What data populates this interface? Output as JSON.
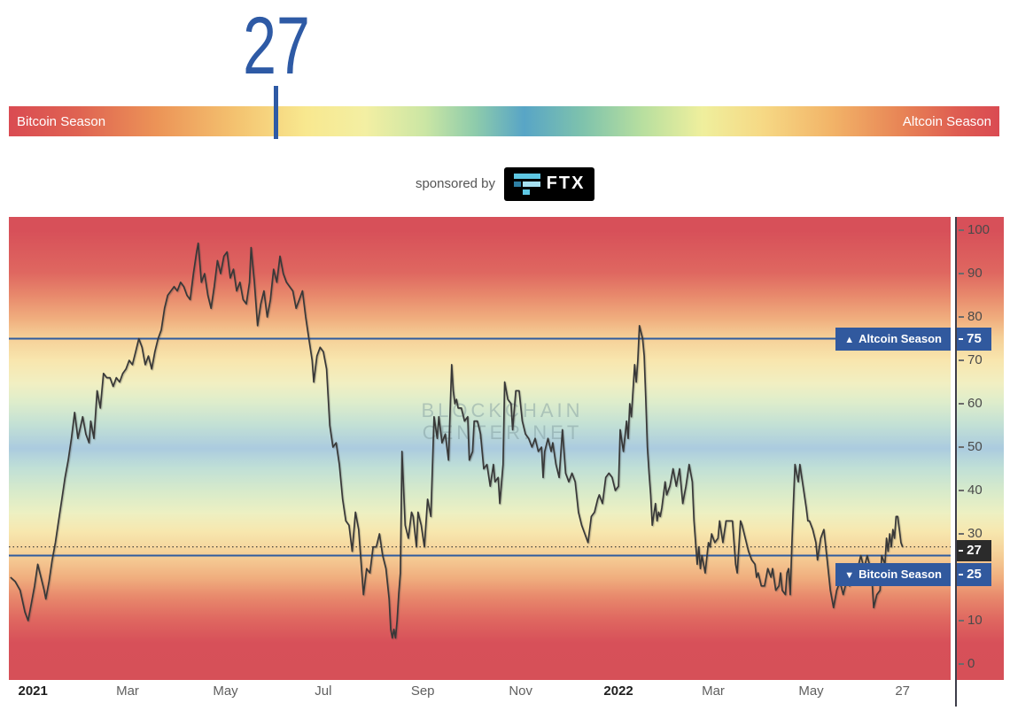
{
  "header": {
    "current_value": "27"
  },
  "gauge": {
    "value": 27,
    "left_label": "Bitcoin Season",
    "right_label": "Altcoin Season"
  },
  "sponsor": {
    "prefix": "sponsored by",
    "name": "FTX"
  },
  "watermark": {
    "line1": "BLOCKCHAIN",
    "line2": "CENTER.NET"
  },
  "colors": {
    "accent_blue": "#31599E",
    "number_blue": "#2E5AA5",
    "current_chip_dark": "#2B2B2B",
    "series_line": "#383838",
    "axis": "#3D3D49"
  },
  "chart_data": {
    "type": "line",
    "title": "Altcoin Season Index",
    "x_axis": {
      "domain": [
        "2020-12-17",
        "2022-07-27"
      ],
      "ticks": [
        {
          "label": "2021",
          "date": "2021-01-01",
          "emphasis": true
        },
        {
          "label": "Mar",
          "date": "2021-03-01"
        },
        {
          "label": "May",
          "date": "2021-05-01"
        },
        {
          "label": "Jul",
          "date": "2021-07-01"
        },
        {
          "label": "Sep",
          "date": "2021-09-01"
        },
        {
          "label": "Nov",
          "date": "2021-11-01"
        },
        {
          "label": "2022",
          "date": "2022-01-01",
          "emphasis": true
        },
        {
          "label": "Mar",
          "date": "2022-03-01"
        },
        {
          "label": "May",
          "date": "2022-05-01"
        },
        {
          "label": "27",
          "date": "2022-06-27"
        }
      ]
    },
    "y_axis": {
      "range": [
        0,
        100
      ],
      "ticks": [
        0,
        10,
        20,
        30,
        40,
        50,
        60,
        70,
        80,
        90,
        100
      ]
    },
    "thresholds": {
      "altcoin": {
        "value": 75,
        "icon": "▲",
        "label": "Altcoin Season"
      },
      "bitcoin": {
        "value": 25,
        "icon": "▼",
        "label": "Bitcoin Season"
      }
    },
    "current": {
      "value": 27,
      "date": "2022-06-27"
    },
    "series": [
      [
        "2020-12-18",
        20
      ],
      [
        "2020-12-21",
        19
      ],
      [
        "2020-12-24",
        17
      ],
      [
        "2020-12-27",
        12
      ],
      [
        "2020-12-29",
        10
      ],
      [
        "2020-12-31",
        14
      ],
      [
        "2021-01-02",
        18
      ],
      [
        "2021-01-04",
        23
      ],
      [
        "2021-01-06",
        20
      ],
      [
        "2021-01-08",
        17
      ],
      [
        "2021-01-09",
        15
      ],
      [
        "2021-01-11",
        19
      ],
      [
        "2021-01-13",
        24
      ],
      [
        "2021-01-15",
        28
      ],
      [
        "2021-01-17",
        33
      ],
      [
        "2021-01-19",
        38
      ],
      [
        "2021-01-21",
        43
      ],
      [
        "2021-01-23",
        47
      ],
      [
        "2021-01-25",
        52
      ],
      [
        "2021-01-27",
        58
      ],
      [
        "2021-01-29",
        52
      ],
      [
        "2021-02-01",
        57
      ],
      [
        "2021-02-03",
        53
      ],
      [
        "2021-02-05",
        51
      ],
      [
        "2021-02-06",
        56
      ],
      [
        "2021-02-08",
        52
      ],
      [
        "2021-02-10",
        63
      ],
      [
        "2021-02-12",
        59
      ],
      [
        "2021-02-14",
        67
      ],
      [
        "2021-02-16",
        66
      ],
      [
        "2021-02-18",
        66
      ],
      [
        "2021-02-20",
        64
      ],
      [
        "2021-02-22",
        66
      ],
      [
        "2021-02-24",
        65
      ],
      [
        "2021-02-26",
        67
      ],
      [
        "2021-02-28",
        68
      ],
      [
        "2021-03-02",
        70
      ],
      [
        "2021-03-04",
        69
      ],
      [
        "2021-03-06",
        72
      ],
      [
        "2021-03-08",
        75
      ],
      [
        "2021-03-10",
        73
      ],
      [
        "2021-03-12",
        69
      ],
      [
        "2021-03-14",
        71
      ],
      [
        "2021-03-16",
        68
      ],
      [
        "2021-03-18",
        72
      ],
      [
        "2021-03-20",
        75
      ],
      [
        "2021-03-22",
        77
      ],
      [
        "2021-03-24",
        82
      ],
      [
        "2021-03-26",
        85
      ],
      [
        "2021-03-28",
        86
      ],
      [
        "2021-03-30",
        87
      ],
      [
        "2021-04-01",
        86
      ],
      [
        "2021-04-03",
        88
      ],
      [
        "2021-04-05",
        87
      ],
      [
        "2021-04-07",
        85
      ],
      [
        "2021-04-09",
        84
      ],
      [
        "2021-04-11",
        90
      ],
      [
        "2021-04-13",
        95
      ],
      [
        "2021-04-14",
        97
      ],
      [
        "2021-04-16",
        88
      ],
      [
        "2021-04-18",
        90
      ],
      [
        "2021-04-20",
        85
      ],
      [
        "2021-04-22",
        82
      ],
      [
        "2021-04-24",
        87
      ],
      [
        "2021-04-26",
        93
      ],
      [
        "2021-04-28",
        90
      ],
      [
        "2021-04-30",
        94
      ],
      [
        "2021-05-02",
        95
      ],
      [
        "2021-05-04",
        89
      ],
      [
        "2021-05-06",
        91
      ],
      [
        "2021-05-08",
        86
      ],
      [
        "2021-05-10",
        88
      ],
      [
        "2021-05-12",
        84
      ],
      [
        "2021-05-14",
        83
      ],
      [
        "2021-05-16",
        88
      ],
      [
        "2021-05-17",
        96
      ],
      [
        "2021-05-19",
        88
      ],
      [
        "2021-05-21",
        78
      ],
      [
        "2021-05-23",
        83
      ],
      [
        "2021-05-25",
        86
      ],
      [
        "2021-05-27",
        80
      ],
      [
        "2021-05-29",
        84
      ],
      [
        "2021-05-31",
        91
      ],
      [
        "2021-06-02",
        88
      ],
      [
        "2021-06-04",
        94
      ],
      [
        "2021-06-06",
        90
      ],
      [
        "2021-06-08",
        88
      ],
      [
        "2021-06-10",
        87
      ],
      [
        "2021-06-12",
        86
      ],
      [
        "2021-06-14",
        82
      ],
      [
        "2021-06-16",
        84
      ],
      [
        "2021-06-18",
        86
      ],
      [
        "2021-06-20",
        80
      ],
      [
        "2021-06-22",
        75
      ],
      [
        "2021-06-24",
        70
      ],
      [
        "2021-06-25",
        65
      ],
      [
        "2021-06-27",
        71
      ],
      [
        "2021-06-29",
        73
      ],
      [
        "2021-07-01",
        72
      ],
      [
        "2021-07-03",
        68
      ],
      [
        "2021-07-05",
        55
      ],
      [
        "2021-07-07",
        50
      ],
      [
        "2021-07-09",
        51
      ],
      [
        "2021-07-11",
        46
      ],
      [
        "2021-07-13",
        38
      ],
      [
        "2021-07-15",
        33
      ],
      [
        "2021-07-17",
        32
      ],
      [
        "2021-07-19",
        26
      ],
      [
        "2021-07-21",
        35
      ],
      [
        "2021-07-23",
        31
      ],
      [
        "2021-07-24",
        26
      ],
      [
        "2021-07-26",
        16
      ],
      [
        "2021-07-28",
        22
      ],
      [
        "2021-07-30",
        21
      ],
      [
        "2021-08-01",
        27
      ],
      [
        "2021-08-03",
        27
      ],
      [
        "2021-08-05",
        30
      ],
      [
        "2021-08-07",
        25
      ],
      [
        "2021-08-09",
        22
      ],
      [
        "2021-08-11",
        15
      ],
      [
        "2021-08-12",
        8
      ],
      [
        "2021-08-13",
        6
      ],
      [
        "2021-08-14",
        8
      ],
      [
        "2021-08-15",
        6
      ],
      [
        "2021-08-16",
        10
      ],
      [
        "2021-08-17",
        16
      ],
      [
        "2021-08-18",
        21
      ],
      [
        "2021-08-19",
        49
      ],
      [
        "2021-08-21",
        32
      ],
      [
        "2021-08-23",
        29
      ],
      [
        "2021-08-25",
        35
      ],
      [
        "2021-08-26",
        34
      ],
      [
        "2021-08-28",
        27
      ],
      [
        "2021-08-29",
        35
      ],
      [
        "2021-08-31",
        32
      ],
      [
        "2021-09-02",
        27
      ],
      [
        "2021-09-04",
        38
      ],
      [
        "2021-09-05",
        36
      ],
      [
        "2021-09-06",
        34
      ],
      [
        "2021-09-08",
        57
      ],
      [
        "2021-09-10",
        52
      ],
      [
        "2021-09-11",
        57
      ],
      [
        "2021-09-13",
        51
      ],
      [
        "2021-09-15",
        53
      ],
      [
        "2021-09-17",
        47
      ],
      [
        "2021-09-19",
        69
      ],
      [
        "2021-09-20",
        63
      ],
      [
        "2021-09-21",
        60
      ],
      [
        "2021-09-22",
        61
      ],
      [
        "2021-09-23",
        59
      ],
      [
        "2021-09-25",
        59
      ],
      [
        "2021-09-27",
        56
      ],
      [
        "2021-09-29",
        57
      ],
      [
        "2021-09-30",
        47
      ],
      [
        "2021-10-02",
        49
      ],
      [
        "2021-10-03",
        56
      ],
      [
        "2021-10-05",
        56
      ],
      [
        "2021-10-07",
        53
      ],
      [
        "2021-10-09",
        45
      ],
      [
        "2021-10-11",
        46
      ],
      [
        "2021-10-13",
        41
      ],
      [
        "2021-10-15",
        46
      ],
      [
        "2021-10-16",
        42
      ],
      [
        "2021-10-18",
        43
      ],
      [
        "2021-10-19",
        37
      ],
      [
        "2021-10-21",
        46
      ],
      [
        "2021-10-22",
        65
      ],
      [
        "2021-10-24",
        61
      ],
      [
        "2021-10-26",
        60
      ],
      [
        "2021-10-27",
        54
      ],
      [
        "2021-10-29",
        63
      ],
      [
        "2021-10-31",
        63
      ],
      [
        "2021-11-02",
        56
      ],
      [
        "2021-11-04",
        53
      ],
      [
        "2021-11-06",
        52
      ],
      [
        "2021-11-08",
        50
      ],
      [
        "2021-11-10",
        52
      ],
      [
        "2021-11-12",
        49
      ],
      [
        "2021-11-14",
        50
      ],
      [
        "2021-11-15",
        43
      ],
      [
        "2021-11-16",
        49
      ],
      [
        "2021-11-18",
        52
      ],
      [
        "2021-11-20",
        49
      ],
      [
        "2021-11-21",
        51
      ],
      [
        "2021-11-23",
        46
      ],
      [
        "2021-11-25",
        43
      ],
      [
        "2021-11-27",
        54
      ],
      [
        "2021-11-29",
        44
      ],
      [
        "2021-12-01",
        42
      ],
      [
        "2021-12-03",
        44
      ],
      [
        "2021-12-05",
        42
      ],
      [
        "2021-12-07",
        35
      ],
      [
        "2021-12-09",
        32
      ],
      [
        "2021-12-11",
        30
      ],
      [
        "2021-12-13",
        28
      ],
      [
        "2021-12-15",
        34
      ],
      [
        "2021-12-17",
        35
      ],
      [
        "2021-12-19",
        38
      ],
      [
        "2021-12-20",
        39
      ],
      [
        "2021-12-22",
        37
      ],
      [
        "2021-12-24",
        43
      ],
      [
        "2021-12-26",
        44
      ],
      [
        "2021-12-28",
        43
      ],
      [
        "2021-12-30",
        40
      ],
      [
        "2022-01-01",
        41
      ],
      [
        "2022-01-02",
        54
      ],
      [
        "2022-01-04",
        49
      ],
      [
        "2022-01-06",
        56
      ],
      [
        "2022-01-07",
        52
      ],
      [
        "2022-01-08",
        60
      ],
      [
        "2022-01-09",
        57
      ],
      [
        "2022-01-11",
        69
      ],
      [
        "2022-01-12",
        65
      ],
      [
        "2022-01-13",
        70
      ],
      [
        "2022-01-14",
        78
      ],
      [
        "2022-01-16",
        75
      ],
      [
        "2022-01-17",
        71
      ],
      [
        "2022-01-18",
        61
      ],
      [
        "2022-01-19",
        50
      ],
      [
        "2022-01-20",
        44
      ],
      [
        "2022-01-21",
        39
      ],
      [
        "2022-01-22",
        32
      ],
      [
        "2022-01-24",
        37
      ],
      [
        "2022-01-25",
        33
      ],
      [
        "2022-01-26",
        35
      ],
      [
        "2022-01-27",
        34
      ],
      [
        "2022-01-28",
        36
      ],
      [
        "2022-01-30",
        42
      ],
      [
        "2022-01-31",
        39
      ],
      [
        "2022-02-02",
        41
      ],
      [
        "2022-02-04",
        45
      ],
      [
        "2022-02-06",
        41
      ],
      [
        "2022-02-08",
        45
      ],
      [
        "2022-02-10",
        37
      ],
      [
        "2022-02-12",
        41
      ],
      [
        "2022-02-14",
        46
      ],
      [
        "2022-02-16",
        42
      ],
      [
        "2022-02-17",
        33
      ],
      [
        "2022-02-19",
        23
      ],
      [
        "2022-02-20",
        27
      ],
      [
        "2022-02-21",
        22
      ],
      [
        "2022-02-22",
        25
      ],
      [
        "2022-02-24",
        21
      ],
      [
        "2022-02-26",
        28
      ],
      [
        "2022-02-27",
        27
      ],
      [
        "2022-02-28",
        30
      ],
      [
        "2022-03-02",
        28
      ],
      [
        "2022-03-04",
        29
      ],
      [
        "2022-03-05",
        33
      ],
      [
        "2022-03-07",
        28
      ],
      [
        "2022-03-09",
        33
      ],
      [
        "2022-03-11",
        33
      ],
      [
        "2022-03-13",
        33
      ],
      [
        "2022-03-14",
        28
      ],
      [
        "2022-03-15",
        23
      ],
      [
        "2022-03-16",
        21
      ],
      [
        "2022-03-18",
        33
      ],
      [
        "2022-03-19",
        32
      ],
      [
        "2022-03-21",
        29
      ],
      [
        "2022-03-23",
        26
      ],
      [
        "2022-03-25",
        24
      ],
      [
        "2022-03-27",
        23
      ],
      [
        "2022-03-28",
        20
      ],
      [
        "2022-03-29",
        21
      ],
      [
        "2022-03-31",
        18
      ],
      [
        "2022-04-02",
        18
      ],
      [
        "2022-04-04",
        22
      ],
      [
        "2022-04-06",
        20
      ],
      [
        "2022-04-07",
        22
      ],
      [
        "2022-04-09",
        17
      ],
      [
        "2022-04-11",
        18
      ],
      [
        "2022-04-12",
        21
      ],
      [
        "2022-04-13",
        17
      ],
      [
        "2022-04-15",
        16
      ],
      [
        "2022-04-16",
        21
      ],
      [
        "2022-04-17",
        22
      ],
      [
        "2022-04-18",
        16
      ],
      [
        "2022-04-19",
        27
      ],
      [
        "2022-04-20",
        37
      ],
      [
        "2022-04-21",
        46
      ],
      [
        "2022-04-23",
        42
      ],
      [
        "2022-04-24",
        46
      ],
      [
        "2022-04-26",
        41
      ],
      [
        "2022-04-28",
        36
      ],
      [
        "2022-04-29",
        33
      ],
      [
        "2022-04-30",
        33
      ],
      [
        "2022-05-02",
        31
      ],
      [
        "2022-05-04",
        28
      ],
      [
        "2022-05-05",
        24
      ],
      [
        "2022-05-07",
        29
      ],
      [
        "2022-05-09",
        31
      ],
      [
        "2022-05-11",
        24
      ],
      [
        "2022-05-13",
        17
      ],
      [
        "2022-05-15",
        13
      ],
      [
        "2022-05-17",
        17
      ],
      [
        "2022-05-19",
        19
      ],
      [
        "2022-05-21",
        16
      ],
      [
        "2022-05-23",
        19
      ],
      [
        "2022-05-25",
        18
      ],
      [
        "2022-05-26",
        22
      ],
      [
        "2022-05-28",
        19
      ],
      [
        "2022-05-30",
        22
      ],
      [
        "2022-06-01",
        25
      ],
      [
        "2022-06-03",
        22
      ],
      [
        "2022-06-05",
        25
      ],
      [
        "2022-06-07",
        22
      ],
      [
        "2022-06-08",
        19
      ],
      [
        "2022-06-09",
        13
      ],
      [
        "2022-06-11",
        16
      ],
      [
        "2022-06-13",
        17
      ],
      [
        "2022-06-14",
        25
      ],
      [
        "2022-06-16",
        23
      ],
      [
        "2022-06-17",
        29
      ],
      [
        "2022-06-18",
        26
      ],
      [
        "2022-06-19",
        30
      ],
      [
        "2022-06-20",
        27
      ],
      [
        "2022-06-21",
        31
      ],
      [
        "2022-06-22",
        29
      ],
      [
        "2022-06-23",
        34
      ],
      [
        "2022-06-24",
        34
      ],
      [
        "2022-06-25",
        31
      ],
      [
        "2022-06-26",
        28
      ],
      [
        "2022-06-27",
        27
      ]
    ]
  }
}
